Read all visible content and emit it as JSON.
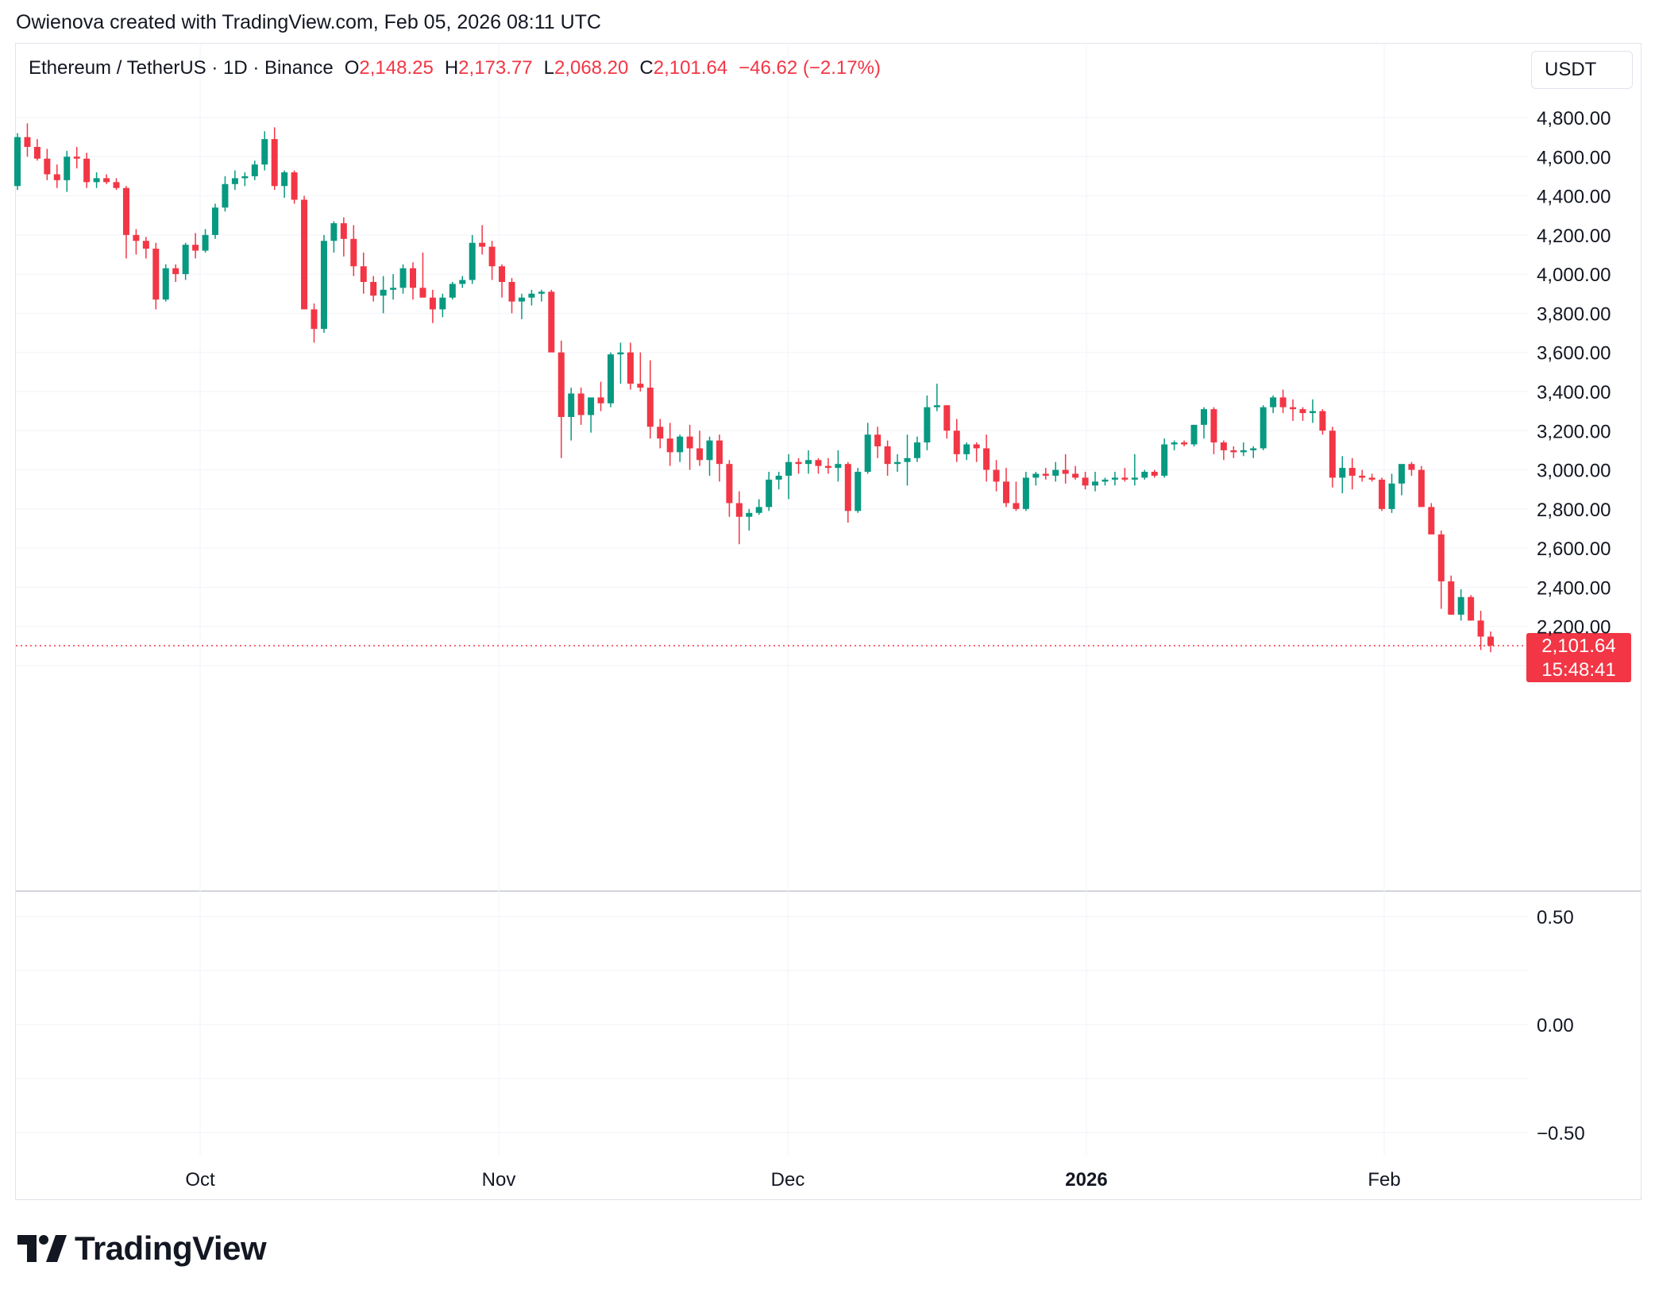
{
  "header": {
    "credit": "Owienova created with TradingView.com, Feb 05, 2026 08:11 UTC"
  },
  "legend": {
    "symbol": "Ethereum / TetherUS · 1D · Binance",
    "o_label": "O",
    "o_value": "2,148.25",
    "h_label": "H",
    "h_value": "2,173.77",
    "l_label": "L",
    "l_value": "2,068.20",
    "c_label": "C",
    "c_value": "2,101.64",
    "change": "−46.62 (−2.17%)"
  },
  "currency_button": "USDT",
  "price_axis": {
    "labels": [
      "4,800.00",
      "4,600.00",
      "4,400.00",
      "4,200.00",
      "4,000.00",
      "3,800.00",
      "3,600.00",
      "3,400.00",
      "3,200.00",
      "3,000.00",
      "2,800.00",
      "2,600.00",
      "2,400.00",
      "2,200.00"
    ]
  },
  "indicator_axis": {
    "labels": [
      "0.50",
      "0.00",
      "−0.50"
    ]
  },
  "time_axis": {
    "labels": [
      "Oct",
      "Nov",
      "Dec",
      "2026",
      "Feb"
    ]
  },
  "last_price": {
    "price": "2,101.64",
    "countdown": "15:48:41"
  },
  "brand": {
    "name": "TradingView"
  },
  "colors": {
    "up": "#089981",
    "down": "#f23645",
    "grid": "#f0f3fa",
    "text": "#131722"
  },
  "chart_data": {
    "type": "candlestick",
    "title": "Ethereum / TetherUS · 1D · Binance",
    "ylabel": "USDT",
    "ylim": [
      1900,
      4900
    ],
    "x_ticks": [
      "Oct",
      "Nov",
      "Dec",
      "2026",
      "Feb"
    ],
    "last_price": 2101.64,
    "indicator_ylim": [
      -0.6,
      0.7
    ],
    "series": [
      {
        "name": "ETHUSDT",
        "ohlc": [
          [
            4450,
            4720,
            4430,
            4700
          ],
          [
            4700,
            4770,
            4600,
            4650
          ],
          [
            4650,
            4690,
            4580,
            4590
          ],
          [
            4590,
            4640,
            4480,
            4510
          ],
          [
            4510,
            4560,
            4440,
            4480
          ],
          [
            4480,
            4630,
            4420,
            4600
          ],
          [
            4600,
            4650,
            4540,
            4590
          ],
          [
            4590,
            4620,
            4440,
            4470
          ],
          [
            4470,
            4520,
            4440,
            4490
          ],
          [
            4490,
            4510,
            4460,
            4470
          ],
          [
            4470,
            4490,
            4430,
            4440
          ],
          [
            4440,
            4450,
            4080,
            4200
          ],
          [
            4200,
            4230,
            4100,
            4170
          ],
          [
            4170,
            4190,
            4080,
            4130
          ],
          [
            4130,
            4160,
            3820,
            3870
          ],
          [
            3870,
            4050,
            3860,
            4030
          ],
          [
            4030,
            4050,
            3960,
            4000
          ],
          [
            4000,
            4160,
            3970,
            4150
          ],
          [
            4150,
            4210,
            4080,
            4120
          ],
          [
            4120,
            4230,
            4110,
            4200
          ],
          [
            4200,
            4360,
            4180,
            4340
          ],
          [
            4340,
            4500,
            4320,
            4460
          ],
          [
            4460,
            4530,
            4430,
            4490
          ],
          [
            4490,
            4520,
            4450,
            4500
          ],
          [
            4500,
            4580,
            4480,
            4560
          ],
          [
            4560,
            4730,
            4530,
            4690
          ],
          [
            4690,
            4750,
            4430,
            4450
          ],
          [
            4450,
            4530,
            4390,
            4520
          ],
          [
            4520,
            4530,
            4360,
            4380
          ],
          [
            4380,
            4400,
            3830,
            3820
          ],
          [
            3820,
            3850,
            3650,
            3720
          ],
          [
            3720,
            4200,
            3700,
            4170
          ],
          [
            4170,
            4270,
            4110,
            4260
          ],
          [
            4260,
            4290,
            4090,
            4180
          ],
          [
            4180,
            4250,
            3990,
            4040
          ],
          [
            4040,
            4110,
            3900,
            3960
          ],
          [
            3960,
            3990,
            3860,
            3890
          ],
          [
            3890,
            3990,
            3800,
            3920
          ],
          [
            3920,
            4000,
            3870,
            3930
          ],
          [
            3930,
            4050,
            3900,
            4030
          ],
          [
            4030,
            4060,
            3870,
            3930
          ],
          [
            3930,
            4110,
            3910,
            3880
          ],
          [
            3880,
            3920,
            3750,
            3820
          ],
          [
            3820,
            3900,
            3780,
            3880
          ],
          [
            3880,
            3960,
            3870,
            3950
          ],
          [
            3950,
            3990,
            3930,
            3970
          ],
          [
            3970,
            4200,
            3950,
            4160
          ],
          [
            4160,
            4250,
            4100,
            4140
          ],
          [
            4140,
            4170,
            3970,
            4040
          ],
          [
            4040,
            4050,
            3880,
            3960
          ],
          [
            3960,
            3980,
            3800,
            3860
          ],
          [
            3860,
            3900,
            3770,
            3880
          ],
          [
            3880,
            3920,
            3840,
            3900
          ],
          [
            3900,
            3920,
            3860,
            3910
          ],
          [
            3910,
            3920,
            3610,
            3600
          ],
          [
            3600,
            3660,
            3060,
            3270
          ],
          [
            3270,
            3420,
            3150,
            3390
          ],
          [
            3390,
            3420,
            3230,
            3280
          ],
          [
            3280,
            3360,
            3190,
            3370
          ],
          [
            3370,
            3450,
            3300,
            3340
          ],
          [
            3340,
            3600,
            3320,
            3590
          ],
          [
            3590,
            3650,
            3440,
            3600
          ],
          [
            3600,
            3650,
            3410,
            3440
          ],
          [
            3440,
            3600,
            3400,
            3420
          ],
          [
            3420,
            3560,
            3160,
            3220
          ],
          [
            3220,
            3260,
            3110,
            3160
          ],
          [
            3160,
            3240,
            3020,
            3090
          ],
          [
            3090,
            3180,
            3040,
            3170
          ],
          [
            3170,
            3230,
            3000,
            3110
          ],
          [
            3110,
            3200,
            3020,
            3050
          ],
          [
            3050,
            3170,
            2970,
            3150
          ],
          [
            3150,
            3180,
            2940,
            3030
          ],
          [
            3030,
            3050,
            2760,
            2830
          ],
          [
            2830,
            2890,
            2620,
            2760
          ],
          [
            2760,
            2800,
            2690,
            2780
          ],
          [
            2780,
            2850,
            2770,
            2810
          ],
          [
            2810,
            2990,
            2790,
            2950
          ],
          [
            2950,
            2990,
            2900,
            2970
          ],
          [
            2970,
            3080,
            2850,
            3040
          ],
          [
            3040,
            3060,
            2980,
            3030
          ],
          [
            3030,
            3100,
            2980,
            3050
          ],
          [
            3050,
            3060,
            2980,
            3020
          ],
          [
            3020,
            3060,
            2980,
            3010
          ],
          [
            3010,
            3100,
            2940,
            3030
          ],
          [
            3030,
            3040,
            2730,
            2790
          ],
          [
            2790,
            3010,
            2780,
            2990
          ],
          [
            2990,
            3240,
            2980,
            3180
          ],
          [
            3180,
            3220,
            3060,
            3120
          ],
          [
            3120,
            3150,
            2970,
            3030
          ],
          [
            3030,
            3080,
            2990,
            3040
          ],
          [
            3040,
            3180,
            2920,
            3060
          ],
          [
            3060,
            3170,
            3040,
            3140
          ],
          [
            3140,
            3380,
            3100,
            3320
          ],
          [
            3320,
            3440,
            3300,
            3330
          ],
          [
            3330,
            3330,
            3160,
            3200
          ],
          [
            3200,
            3260,
            3040,
            3080
          ],
          [
            3080,
            3140,
            3050,
            3130
          ],
          [
            3130,
            3140,
            3040,
            3110
          ],
          [
            3110,
            3180,
            2940,
            3000
          ],
          [
            3000,
            3050,
            2890,
            2940
          ],
          [
            2940,
            3010,
            2810,
            2830
          ],
          [
            2830,
            2940,
            2790,
            2800
          ],
          [
            2800,
            2990,
            2790,
            2960
          ],
          [
            2960,
            2990,
            2920,
            2980
          ],
          [
            2980,
            3010,
            2950,
            2970
          ],
          [
            2970,
            3040,
            2940,
            3000
          ],
          [
            3000,
            3080,
            2930,
            2980
          ],
          [
            2980,
            3020,
            2950,
            2960
          ],
          [
            2960,
            2990,
            2900,
            2920
          ],
          [
            2920,
            2990,
            2890,
            2940
          ],
          [
            2940,
            2960,
            2920,
            2950
          ],
          [
            2950,
            2990,
            2920,
            2960
          ],
          [
            2960,
            3010,
            2940,
            2950
          ],
          [
            2950,
            3080,
            2920,
            2960
          ],
          [
            2960,
            3000,
            2950,
            2990
          ],
          [
            2990,
            3000,
            2960,
            2970
          ],
          [
            2970,
            3160,
            2960,
            3130
          ],
          [
            3130,
            3150,
            3100,
            3140
          ],
          [
            3140,
            3150,
            3120,
            3130
          ],
          [
            3130,
            3230,
            3120,
            3230
          ],
          [
            3230,
            3320,
            3160,
            3310
          ],
          [
            3310,
            3320,
            3080,
            3140
          ],
          [
            3140,
            3150,
            3050,
            3100
          ],
          [
            3100,
            3120,
            3060,
            3090
          ],
          [
            3090,
            3140,
            3070,
            3100
          ],
          [
            3100,
            3120,
            3060,
            3110
          ],
          [
            3110,
            3330,
            3100,
            3320
          ],
          [
            3320,
            3380,
            3290,
            3370
          ],
          [
            3370,
            3410,
            3290,
            3320
          ],
          [
            3320,
            3360,
            3250,
            3310
          ],
          [
            3310,
            3320,
            3250,
            3290
          ],
          [
            3290,
            3360,
            3240,
            3300
          ],
          [
            3300,
            3310,
            3180,
            3200
          ],
          [
            3200,
            3220,
            2910,
            2960
          ],
          [
            2960,
            3070,
            2880,
            3010
          ],
          [
            3010,
            3060,
            2900,
            2970
          ],
          [
            2970,
            3000,
            2940,
            2960
          ],
          [
            2960,
            2980,
            2940,
            2950
          ],
          [
            2950,
            2960,
            2790,
            2800
          ],
          [
            2800,
            2980,
            2780,
            2930
          ],
          [
            2930,
            3020,
            2870,
            3030
          ],
          [
            3030,
            3040,
            2970,
            3000
          ],
          [
            3000,
            3020,
            2830,
            2810
          ],
          [
            2810,
            2830,
            2690,
            2670
          ],
          [
            2670,
            2690,
            2290,
            2430
          ],
          [
            2430,
            2460,
            2260,
            2260
          ],
          [
            2260,
            2390,
            2230,
            2350
          ],
          [
            2350,
            2360,
            2230,
            2230
          ],
          [
            2230,
            2280,
            2080,
            2148
          ],
          [
            2148,
            2174,
            2068,
            2102
          ]
        ]
      }
    ]
  }
}
